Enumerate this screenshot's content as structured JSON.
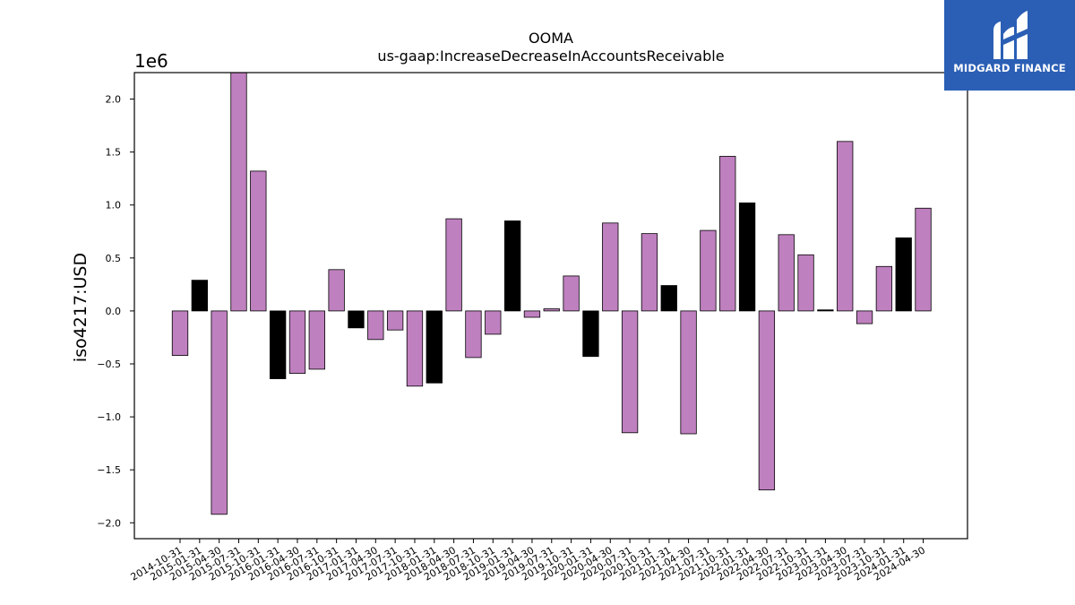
{
  "chart_data": {
    "type": "bar",
    "title": "OOMA",
    "subtitle": "us-gaap:IncreaseDecreaseInAccountsReceivable",
    "ylabel": "iso4217:USD",
    "y_offset_label": "1e6",
    "ylim": [
      -2150000,
      2250000
    ],
    "yticks": [
      -2.0,
      -1.5,
      -1.0,
      -0.5,
      0.0,
      0.5,
      1.0,
      1.5,
      2.0
    ],
    "yticks_scale": 1000000,
    "grid": false,
    "legend": "none",
    "colors": {
      "default": "#bf80bf",
      "highlight": "#000000",
      "edge": "#000000"
    },
    "categories": [
      "2014-10-31",
      "2015-01-31",
      "2015-04-30",
      "2015-07-31",
      "2015-10-31",
      "2016-01-31",
      "2016-04-30",
      "2016-07-31",
      "2016-10-31",
      "2017-01-31",
      "2017-04-30",
      "2017-07-31",
      "2017-10-31",
      "2018-01-31",
      "2018-04-30",
      "2018-07-31",
      "2018-10-31",
      "2019-01-31",
      "2019-04-30",
      "2019-07-31",
      "2019-10-31",
      "2020-01-31",
      "2020-04-30",
      "2020-07-31",
      "2020-10-31",
      "2021-01-31",
      "2021-04-30",
      "2021-07-31",
      "2021-10-31",
      "2022-01-31",
      "2022-04-30",
      "2022-07-31",
      "2022-10-31",
      "2023-01-31",
      "2023-04-30",
      "2023-07-31",
      "2023-10-31",
      "2024-01-31",
      "2024-04-30"
    ],
    "values": [
      -420000,
      290000,
      -1920000,
      2260000,
      1320000,
      -640000,
      -590000,
      -550000,
      390000,
      -160000,
      -270000,
      -180000,
      -710000,
      -680000,
      870000,
      -440000,
      -220000,
      850000,
      -60000,
      20000,
      330000,
      -430000,
      830000,
      -1150000,
      730000,
      240000,
      -1160000,
      760000,
      1460000,
      1020000,
      -1690000,
      720000,
      530000,
      10000,
      1600000,
      -120000,
      420000,
      690000,
      970000
    ],
    "highlight": [
      false,
      true,
      false,
      false,
      false,
      true,
      false,
      false,
      false,
      true,
      false,
      false,
      false,
      true,
      false,
      false,
      false,
      true,
      false,
      false,
      false,
      true,
      false,
      false,
      false,
      true,
      false,
      false,
      false,
      true,
      false,
      false,
      false,
      true,
      false,
      false,
      false,
      true,
      false
    ]
  },
  "logo": {
    "name": "MIDGARD FINANCE",
    "icon": "midgard-logo-icon"
  }
}
